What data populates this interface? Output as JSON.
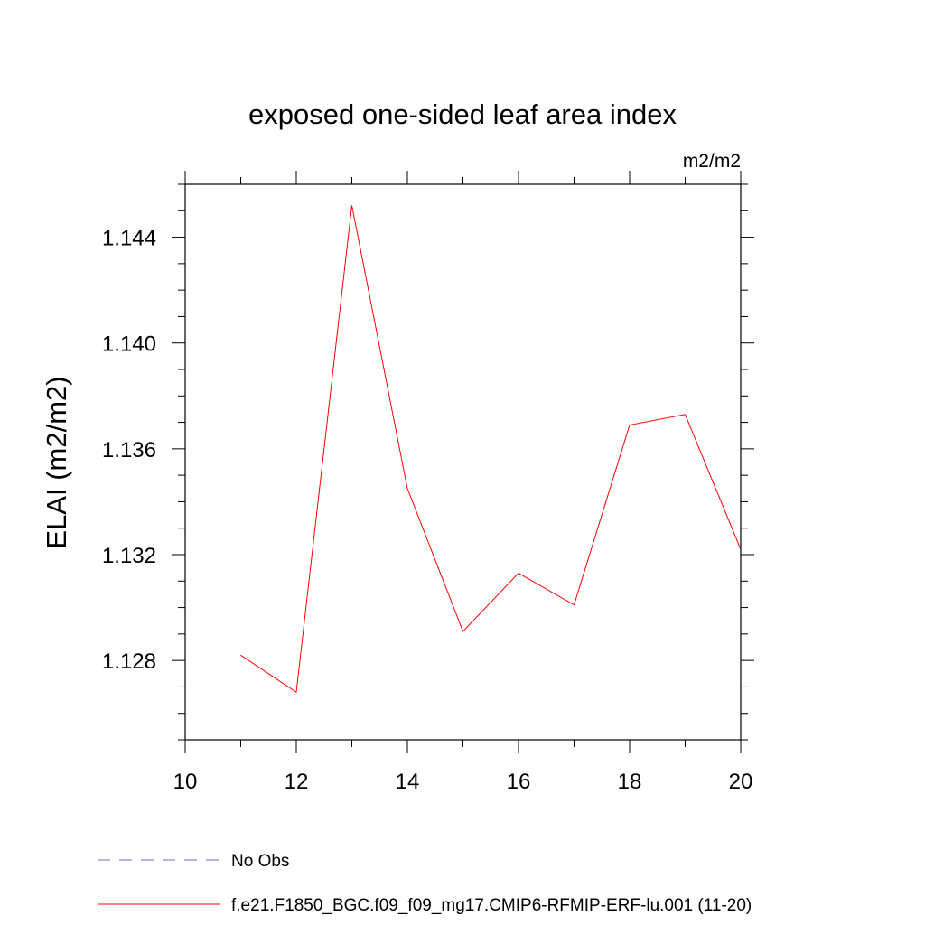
{
  "chart_data": {
    "type": "line",
    "title": "exposed one-sided leaf area index",
    "units": "m2/m2",
    "xlabel": "",
    "ylabel": "ELAI  (m2/m2)",
    "xlim": [
      10,
      20
    ],
    "ylim": [
      1.125,
      1.146
    ],
    "x_ticks": [
      10,
      12,
      14,
      16,
      18,
      20
    ],
    "y_ticks": [
      1.128,
      1.132,
      1.136,
      1.14,
      1.144
    ],
    "y_tick_labels": [
      "1.128",
      "1.132",
      "1.136",
      "1.140",
      "1.144"
    ],
    "grid": false,
    "legend_position": "bottom-left",
    "series": [
      {
        "name": "No Obs",
        "color": "#6a6ad0",
        "style": "dashed",
        "x": [],
        "values": []
      },
      {
        "name": "f.e21.F1850_BGC.f09_f09_mg17.CMIP6-RFMIP-ERF-lu.001 (11-20)",
        "color": "#ff0000",
        "style": "solid",
        "x": [
          11,
          12,
          13,
          14,
          15,
          16,
          17,
          18,
          19,
          20
        ],
        "values": [
          1.1282,
          1.1268,
          1.1452,
          1.1345,
          1.1291,
          1.1313,
          1.1301,
          1.1369,
          1.1373,
          1.1322
        ]
      }
    ]
  }
}
